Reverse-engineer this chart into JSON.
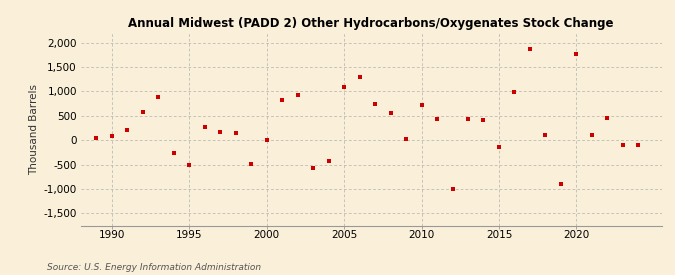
{
  "title": "Annual Midwest (PADD 2) Other Hydrocarbons/Oxygenates Stock Change",
  "ylabel": "Thousand Barrels",
  "source": "Source: U.S. Energy Information Administration",
  "background_color": "#faefd9",
  "dot_color": "#cc0000",
  "xlim": [
    1988.0,
    2025.5
  ],
  "ylim": [
    -1750,
    2200
  ],
  "yticks": [
    -1500,
    -1000,
    -500,
    0,
    500,
    1000,
    1500,
    2000
  ],
  "xticks": [
    1990,
    1995,
    2000,
    2005,
    2010,
    2015,
    2020
  ],
  "years": [
    1989,
    1990,
    1991,
    1992,
    1993,
    1994,
    1995,
    1996,
    1997,
    1998,
    1999,
    2000,
    2001,
    2002,
    2003,
    2004,
    2005,
    2006,
    2007,
    2008,
    2009,
    2010,
    2011,
    2012,
    2013,
    2014,
    2015,
    2016,
    2017,
    2018,
    2019,
    2020,
    2021,
    2022,
    2023,
    2024
  ],
  "values": [
    50,
    80,
    200,
    580,
    880,
    -270,
    -500,
    265,
    170,
    155,
    -480,
    10,
    830,
    920,
    -580,
    -430,
    1100,
    1300,
    750,
    550,
    30,
    730,
    430,
    -1000,
    430,
    420,
    -130,
    980,
    1870,
    110,
    -900,
    1770,
    100,
    450,
    -90,
    -100
  ]
}
